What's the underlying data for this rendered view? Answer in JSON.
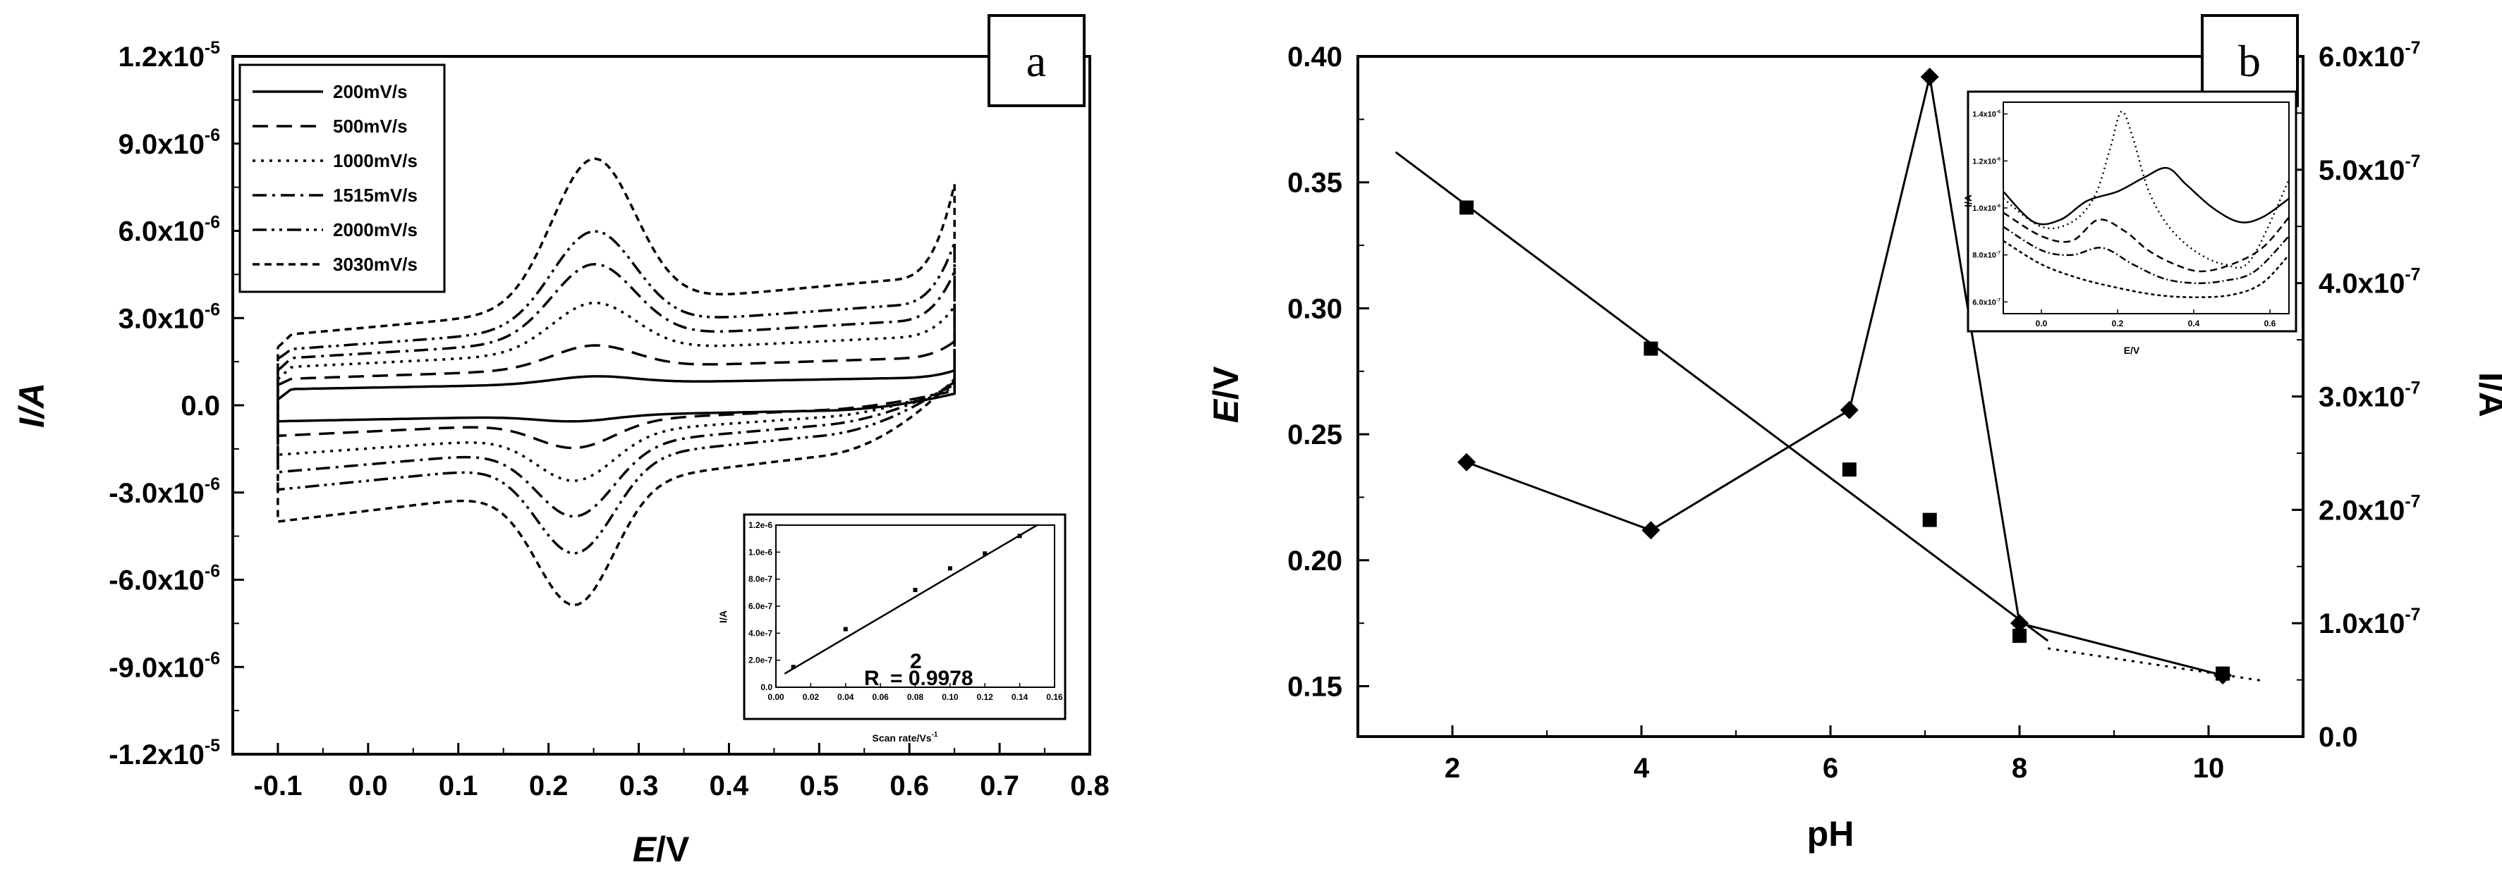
{
  "chart_data": [
    {
      "panel": "a",
      "type": "line",
      "xlabel_italic": "E",
      "xlabel_rest": "/V",
      "ylabel": "I/A",
      "xlim": [
        -0.15,
        0.8
      ],
      "ylim": [
        -1.2e-05,
        1.2e-05
      ],
      "xticks": [
        -0.1,
        0.0,
        0.1,
        0.2,
        0.3,
        0.4,
        0.5,
        0.6,
        0.7,
        0.8
      ],
      "xtick_labels": [
        "-0.1",
        "0.0",
        "0.1",
        "0.2",
        "0.3",
        "0.4",
        "0.5",
        "0.6",
        "0.7",
        "0.8"
      ],
      "yticks": [
        -1.2e-05,
        -9e-06,
        -6e-06,
        -3e-06,
        0.0,
        3e-06,
        6e-06,
        9e-06,
        1.2e-05
      ],
      "ytick_labels": [
        {
          "mant": "-1.2x10",
          "exp": "-5"
        },
        {
          "mant": "-9.0x10",
          "exp": "-6"
        },
        {
          "mant": "-6.0x10",
          "exp": "-6"
        },
        {
          "mant": "-3.0x10",
          "exp": "-6"
        },
        {
          "mant": "0.0",
          "exp": ""
        },
        {
          "mant": "3.0x10",
          "exp": "-6"
        },
        {
          "mant": "6.0x10",
          "exp": "-6"
        },
        {
          "mant": "9.0x10",
          "exp": "-6"
        },
        {
          "mant": "1.2x10",
          "exp": "-5"
        }
      ],
      "legend": {
        "position": "top-left"
      },
      "series": [
        {
          "name": "200mV/s",
          "dash": "solid",
          "ox_base": 5.5e-07,
          "ox_slope": 6e-07,
          "ox_peak": 2.5e-07,
          "red_base": -5.5e-07,
          "red_slope": 4.5e-07,
          "red_peak": -2e-07,
          "start": 2e-07,
          "end_top": 1.2e-06
        },
        {
          "name": "500mV/s",
          "dash": "dashed",
          "ox_base": 9e-07,
          "ox_slope": 1.1e-06,
          "ox_peak": 8e-07,
          "red_base": -1.05e-06,
          "red_slope": 1.1e-06,
          "red_peak": -9e-07,
          "start": 7e-07,
          "end_top": 2.2e-06
        },
        {
          "name": "1000mV/s",
          "dash": "dotted",
          "ox_base": 1.3e-06,
          "ox_slope": 1.6e-06,
          "ox_peak": 1.7e-06,
          "red_base": -1.7e-06,
          "red_slope": 1.6e-06,
          "red_peak": -1.6e-06,
          "start": 9e-07,
          "end_top": 3.4e-06
        },
        {
          "name": "1515mV/s",
          "dash": "dashdot",
          "ox_base": 1.6e-06,
          "ox_slope": 2e-06,
          "ox_peak": 2.6e-06,
          "red_base": -2.3e-06,
          "red_slope": 2e-06,
          "red_peak": -2.4e-06,
          "start": 1.2e-06,
          "end_top": 4.6e-06
        },
        {
          "name": "2000mV/s",
          "dash": "dashdotdot",
          "ox_base": 1.9e-06,
          "ox_slope": 2.4e-06,
          "ox_peak": 3.3e-06,
          "red_base": -2.9e-06,
          "red_slope": 2.3e-06,
          "red_peak": -3.2e-06,
          "start": 1.6e-06,
          "end_top": 5.6e-06
        },
        {
          "name": "3030mV/s",
          "dash": "shortdash",
          "ox_base": 2.4e-06,
          "ox_slope": 3e-06,
          "ox_peak": 5.1e-06,
          "red_base": -4e-06,
          "red_slope": 2.8e-06,
          "red_peak": -4.1e-06,
          "start": 2e-06,
          "end_top": 7.6e-06
        }
      ],
      "inset": {
        "type": "scatter",
        "xlabel": "Scan rate/Vs",
        "xlabel_exp": "-1",
        "ylabel": "I/A",
        "xlim": [
          0.0,
          0.16
        ],
        "ylim": [
          0.0,
          1.2e-06
        ],
        "xtick_labels": [
          "0.00",
          "0.02",
          "0.04",
          "0.06",
          "0.08",
          "0.10",
          "0.12",
          "0.14",
          "0.16"
        ],
        "ytick_labels": [
          "0.0",
          "2.0e-7",
          "4.0e-7",
          "6.0e-7",
          "8.0e-7",
          "1.0e-6",
          "1.2e-6"
        ],
        "x": [
          0.01,
          0.04,
          0.08,
          0.1,
          0.12,
          0.14
        ],
        "y": [
          1.5e-07,
          4.3e-07,
          7.2e-07,
          8.8e-07,
          9.9e-07,
          1.12e-06
        ],
        "annotation_main": "R",
        "annotation_sup": "2",
        "annotation_value": "= 0.9978"
      },
      "panel_label": "a"
    },
    {
      "panel": "b",
      "type": "scatter",
      "xlabel": "pH",
      "ylabel_italic": "E",
      "ylabel_rest": "/V",
      "ylabel_right": "I/A",
      "xlim": [
        1,
        11
      ],
      "ylim": [
        0.13,
        0.4
      ],
      "ylim_right": [
        0.0,
        6e-07
      ],
      "xticks": [
        2,
        4,
        6,
        8,
        10
      ],
      "xtick_labels": [
        "2",
        "4",
        "6",
        "8",
        "10"
      ],
      "yticks": [
        0.15,
        0.2,
        0.25,
        0.3,
        0.35,
        0.4
      ],
      "ytick_labels": [
        "0.15",
        "0.20",
        "0.25",
        "0.30",
        "0.35",
        "0.40"
      ],
      "yticks_right": [
        0.0,
        1e-07,
        2e-07,
        3e-07,
        4e-07,
        5e-07,
        6e-07
      ],
      "ytick_labels_right": [
        {
          "mant": "0.0",
          "exp": ""
        },
        {
          "mant": "1.0x10",
          "exp": "-7"
        },
        {
          "mant": "2.0x10",
          "exp": "-7"
        },
        {
          "mant": "3.0x10",
          "exp": "-7"
        },
        {
          "mant": "4.0x10",
          "exp": "-7"
        },
        {
          "mant": "5.0x10",
          "exp": "-7"
        },
        {
          "mant": "6.0x10",
          "exp": "-7"
        }
      ],
      "series": [
        {
          "marker": "square",
          "axis": "left",
          "x": [
            2.15,
            4.1,
            6.2,
            7.05,
            8.0,
            10.15
          ],
          "y": [
            0.34,
            0.284,
            0.236,
            0.216,
            0.17,
            0.155
          ]
        },
        {
          "marker": "diamond",
          "axis": "right",
          "x": [
            2.15,
            4.1,
            6.2,
            7.05,
            8.0,
            10.15
          ],
          "y": [
            2.42e-07,
            1.82e-07,
            2.88e-07,
            5.82e-07,
            1e-07,
            5.4e-08
          ]
        }
      ],
      "fit_line": {
        "x": [
          1.4,
          8.3
        ],
        "y": [
          0.362,
          0.168
        ]
      },
      "dotted_line": {
        "x": [
          8.3,
          10.6
        ],
        "y": [
          0.165,
          0.152
        ]
      },
      "inset": {
        "type": "line",
        "xlabel": "E/V",
        "ylabel": "I/A",
        "xlim": [
          -0.1,
          0.65
        ],
        "ylim": [
          5.5e-07,
          1.45e-06
        ],
        "xtick_labels": [
          "0.0",
          "0.2",
          "0.4",
          "0.6"
        ],
        "ytick_labels": [
          {
            "mant": "6.0x10",
            "exp": "-7"
          },
          {
            "mant": "8.0x10",
            "exp": "-7"
          },
          {
            "mant": "1.0x10",
            "exp": "-6"
          },
          {
            "mant": "1.2x10",
            "exp": "-6"
          },
          {
            "mant": "1.4x10",
            "exp": "-6"
          }
        ],
        "series": [
          {
            "dash": "solid",
            "x": [
              -0.1,
              -0.02,
              0.05,
              0.12,
              0.2,
              0.27,
              0.33,
              0.38,
              0.45,
              0.52,
              0.58,
              0.65
            ],
            "y": [
              1.07e-06,
              9.4e-07,
              9.5e-07,
              1.03e-06,
              1.07e-06,
              1.13e-06,
              1.17e-06,
              1.1e-06,
              1e-06,
              9.4e-07,
              9.6e-07,
              1.04e-06
            ]
          },
          {
            "dash": "dotted",
            "x": [
              -0.1,
              0.0,
              0.08,
              0.14,
              0.18,
              0.21,
              0.24,
              0.28,
              0.33,
              0.4,
              0.48,
              0.55,
              0.65
            ],
            "y": [
              1.04e-06,
              9.2e-07,
              9.4e-07,
              1.05e-06,
              1.25e-06,
              1.41e-06,
              1.3e-06,
              1.08e-06,
              9.3e-07,
              8.2e-07,
              7.6e-07,
              7.8e-07,
              1.12e-06
            ]
          },
          {
            "dash": "dashed",
            "x": [
              -0.1,
              0.0,
              0.08,
              0.15,
              0.22,
              0.28,
              0.35,
              0.42,
              0.5,
              0.58,
              0.65
            ],
            "y": [
              9.8e-07,
              8.8e-07,
              8.6e-07,
              9.5e-07,
              9e-07,
              8.2e-07,
              7.6e-07,
              7.3e-07,
              7.6e-07,
              8.3e-07,
              9.6e-07
            ]
          },
          {
            "dash": "dashdot",
            "x": [
              -0.1,
              0.0,
              0.08,
              0.16,
              0.24,
              0.32,
              0.4,
              0.48,
              0.56,
              0.65
            ],
            "y": [
              9.2e-07,
              8.2e-07,
              8e-07,
              8.3e-07,
              7.6e-07,
              7e-07,
              6.8e-07,
              6.9e-07,
              7.3e-07,
              8.8e-07
            ]
          },
          {
            "dash": "shortdash",
            "x": [
              -0.1,
              0.0,
              0.1,
              0.2,
              0.3,
              0.4,
              0.5,
              0.58,
              0.65
            ],
            "y": [
              8.6e-07,
              7.6e-07,
              7e-07,
              6.6e-07,
              6.3e-07,
              6.2e-07,
              6.3e-07,
              6.8e-07,
              8e-07
            ]
          }
        ]
      },
      "panel_label": "b"
    }
  ]
}
